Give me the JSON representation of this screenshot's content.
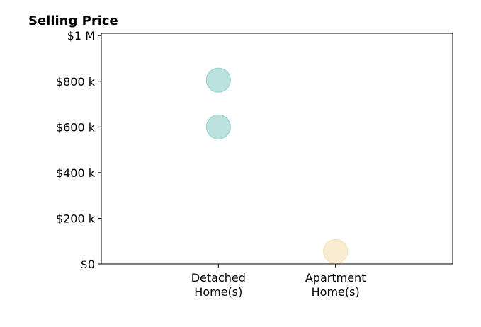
{
  "chart_data": {
    "type": "scatter",
    "title": "Selling Price",
    "xlabel": "",
    "ylabel": "",
    "categories": [
      [
        "Detached",
        "Home(s)"
      ],
      [
        "Apartment",
        "Home(s)"
      ]
    ],
    "y_ticks": [
      {
        "value": 0,
        "label": "$0"
      },
      {
        "value": 200000,
        "label": "$200 k"
      },
      {
        "value": 400000,
        "label": "$400 k"
      },
      {
        "value": 600000,
        "label": "$600 k"
      },
      {
        "value": 800000,
        "label": "$800 k"
      },
      {
        "value": 1000000,
        "label": "$1 M"
      }
    ],
    "ylim": [
      0,
      1010000
    ],
    "xlim": [
      -1,
      2
    ],
    "grid": false,
    "points": [
      {
        "category": 0,
        "y": 805000,
        "color": "#8ecfc9"
      },
      {
        "category": 0,
        "y": 600000,
        "color": "#8ecfc9"
      },
      {
        "category": 1,
        "y": 55000,
        "color": "#f6dfb0"
      }
    ]
  }
}
